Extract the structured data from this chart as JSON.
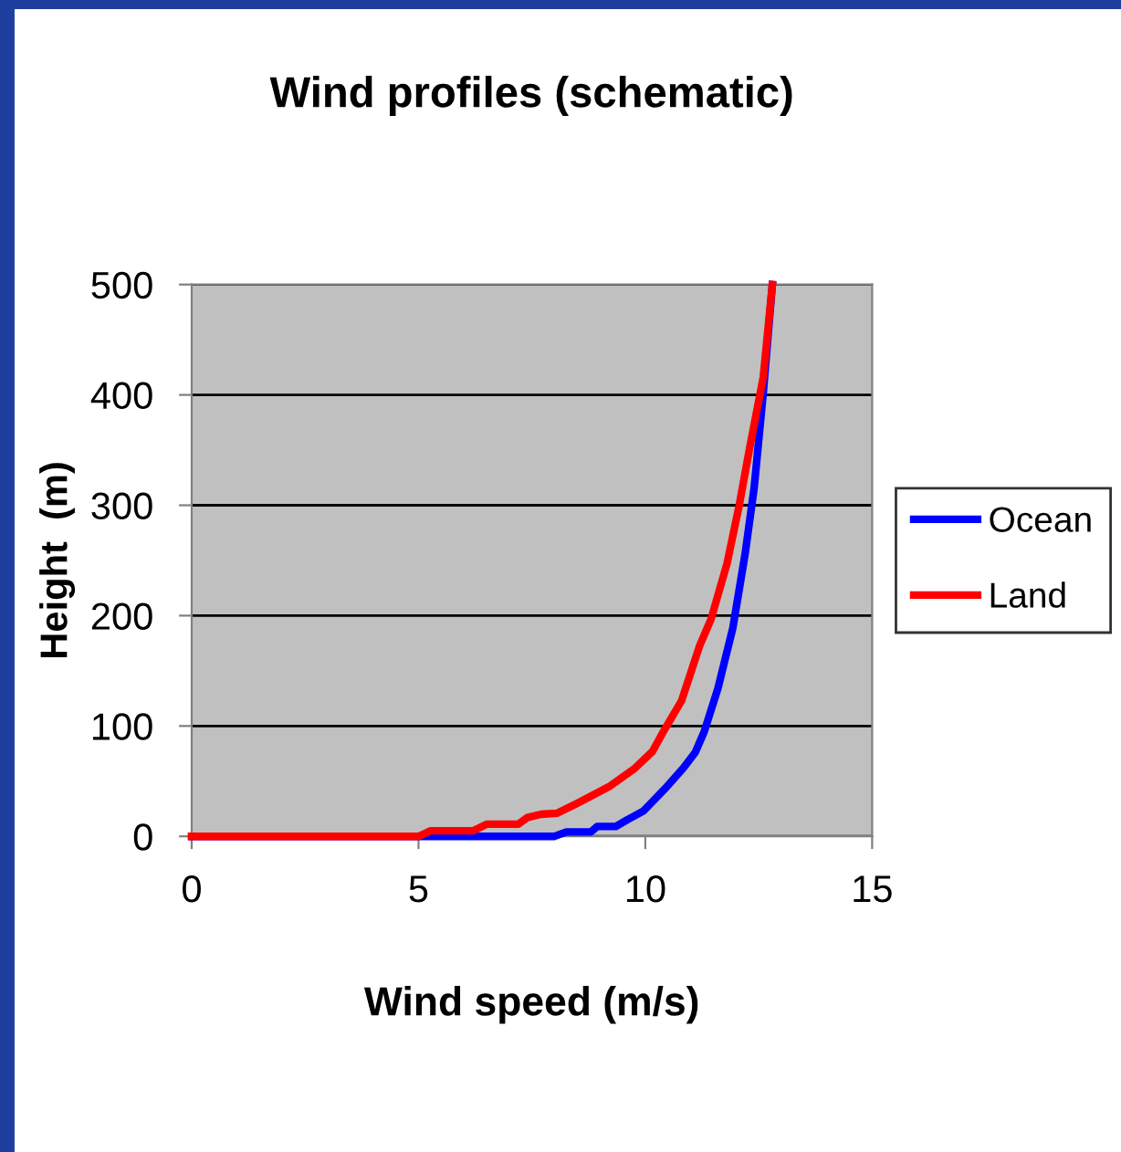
{
  "chart_data": {
    "type": "line",
    "title": "Wind profiles (schematic)",
    "xlabel": "Wind speed (m/s)",
    "ylabel": "Height  (m)",
    "xlim": [
      0,
      15
    ],
    "xticks": [
      0,
      5,
      10,
      15
    ],
    "ylim": [
      0,
      500
    ],
    "yticks": [
      0,
      100,
      200,
      300,
      400,
      500
    ],
    "grid": "y",
    "legend": "right",
    "marker": "none",
    "line_style": "solid",
    "series": [
      {
        "name": "Ocean",
        "color": "#0000ff",
        "x": [
          0,
          8.0,
          8.26,
          8.8,
          8.94,
          9.35,
          9.6,
          9.96,
          10.43,
          10.84,
          11.1,
          11.3,
          11.6,
          11.93,
          12.2,
          12.4,
          12.6,
          12.8
        ],
        "values": [
          0,
          0,
          4,
          4,
          9,
          9,
          15,
          23,
          43,
          62,
          76,
          95,
          134,
          189,
          256,
          316,
          402,
          500
        ]
      },
      {
        "name": "Land",
        "color": "#ff0000",
        "x": [
          0,
          5.0,
          5.27,
          6.2,
          6.5,
          7.2,
          7.4,
          7.7,
          8.06,
          8.5,
          9.2,
          9.75,
          10.16,
          10.4,
          10.8,
          11.2,
          11.45,
          11.8,
          12.07,
          12.3,
          12.6,
          12.8
        ],
        "values": [
          0,
          0,
          5,
          5,
          11,
          11,
          17,
          20,
          21,
          30,
          45,
          61,
          77,
          95,
          123,
          173,
          197,
          247,
          300,
          352,
          416,
          500
        ]
      }
    ]
  }
}
